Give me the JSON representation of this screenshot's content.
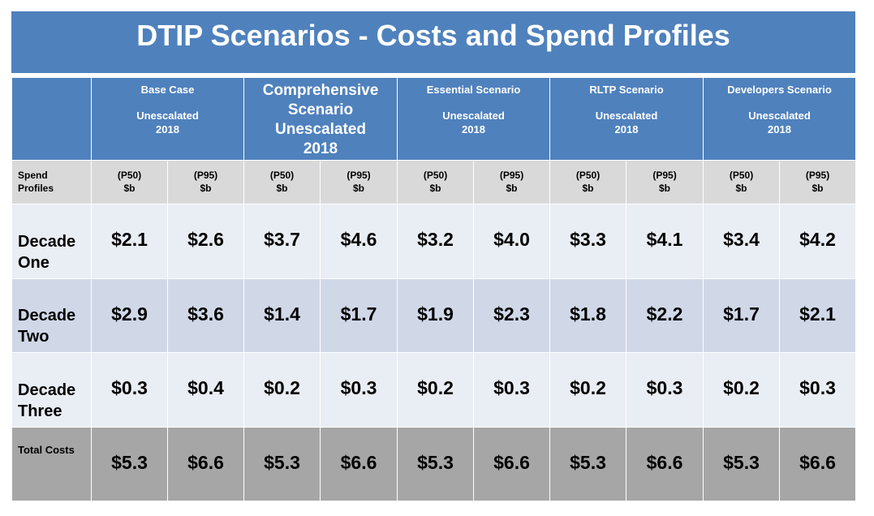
{
  "title": "DTIP Scenarios - Costs and Spend Profiles",
  "scenarios": [
    {
      "name": "Base Case",
      "sub1": "Unescalated",
      "sub2": "2018"
    },
    {
      "name1": "Comprehensive",
      "name2": "Scenario",
      "sub1": "Unescalated",
      "sub2": "2018"
    },
    {
      "name": "Essential Scenario",
      "sub1": "Unescalated",
      "sub2": "2018"
    },
    {
      "name": "RLTP Scenario",
      "sub1": "Unescalated",
      "sub2": "2018"
    },
    {
      "name": "Developers Scenario",
      "sub1": "Unescalated",
      "sub2": "2018"
    }
  ],
  "subheader": {
    "label1": "Spend",
    "label2": "Profiles",
    "p50": "(P50)",
    "p95": "(P95)",
    "unit": "$b"
  },
  "rows": [
    {
      "label1": "Decade",
      "label2": "One",
      "values": [
        "$2.1",
        "$2.6",
        "$3.7",
        "$4.6",
        "$3.2",
        "$4.0",
        "$3.3",
        "$4.1",
        "$3.4",
        "$4.2"
      ]
    },
    {
      "label1": "Decade",
      "label2": "Two",
      "values": [
        "$2.9",
        "$3.6",
        "$1.4",
        "$1.7",
        "$1.9",
        "$2.3",
        "$1.8",
        "$2.2",
        "$1.7",
        "$2.1"
      ]
    },
    {
      "label1": "Decade",
      "label2": "Three",
      "values": [
        "$0.3",
        "$0.4",
        "$0.2",
        "$0.3",
        "$0.2",
        "$0.3",
        "$0.2",
        "$0.3",
        "$0.2",
        "$0.3"
      ]
    }
  ],
  "total": {
    "label": "Total Costs",
    "values": [
      "$5.3",
      "$6.6",
      "$5.3",
      "$6.6",
      "$5.3",
      "$6.6",
      "$5.3",
      "$6.6",
      "$5.3",
      "$6.6"
    ]
  },
  "colors": {
    "header_blue": "#4f81bd",
    "light_row": "#e9edf4",
    "mid_row": "#d0d8e8",
    "subheader_grey": "#d9d9d9",
    "total_grey": "#a6a6a6"
  }
}
